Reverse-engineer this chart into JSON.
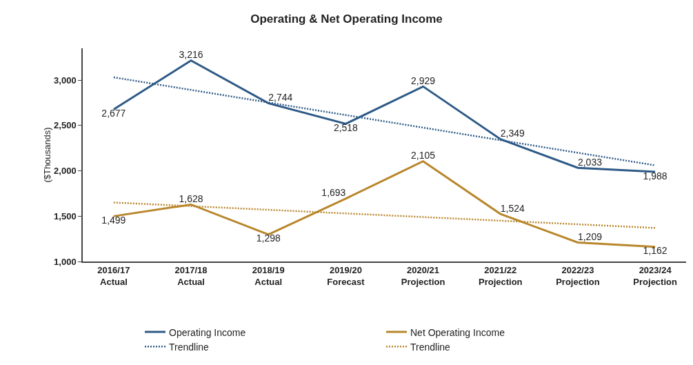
{
  "chart_data": {
    "type": "line",
    "title": "Operating & Net Operating Income",
    "ylabel": "($Thousands)",
    "categories": [
      "2016/17\nActual",
      "2017/18\nActual",
      "2018/19\nActual",
      "2019/20\nForecast",
      "2020/21\nProjection",
      "2021/22\nProjection",
      "2022/23\nProjection",
      "2023/24\nProjection"
    ],
    "series": [
      {
        "name": "Operating Income",
        "color": "#2e5a87",
        "values": [
          2677,
          3216,
          2744,
          2518,
          2929,
          2349,
          2033,
          1988
        ],
        "value_labels": [
          "2,677",
          "3,216",
          "2,744",
          "2,518",
          "2,929",
          "2,349",
          "2,033",
          "1,988"
        ]
      },
      {
        "name": "Net Operating Income",
        "color": "#b8862b",
        "values": [
          1499,
          1628,
          1298,
          1693,
          2105,
          1524,
          1209,
          1162
        ],
        "value_labels": [
          "1,499",
          "1,628",
          "1,298",
          "1,693",
          "2,105",
          "1,524",
          "1,209",
          "1,162"
        ]
      },
      {
        "name": "Trendline",
        "type": "line",
        "color": "#2e5a87",
        "line_style": "dotted",
        "x": [
          "2016/17\nActual",
          "2023/24\nProjection"
        ],
        "values": [
          3030,
          2060
        ]
      },
      {
        "name": "Trendline",
        "type": "line",
        "color": "#b8862b",
        "line_style": "dotted",
        "x": [
          "2016/17\nActual",
          "2023/24\nProjection"
        ],
        "values": [
          1650,
          1370
        ]
      }
    ],
    "ylim": [
      1000,
      3350
    ],
    "yticks": [
      {
        "value": 1000,
        "label": "1,000"
      },
      {
        "value": 1500,
        "label": "1,500"
      },
      {
        "value": 2000,
        "label": "2,000"
      },
      {
        "value": 2500,
        "label": "2,500"
      },
      {
        "value": 3000,
        "label": "3,000"
      }
    ],
    "grid": false,
    "legend": "bottom",
    "marker": "none",
    "line_style": "solid"
  }
}
